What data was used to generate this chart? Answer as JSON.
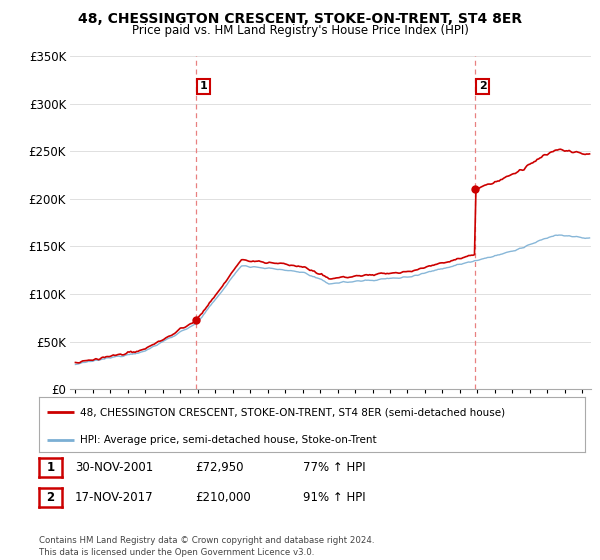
{
  "title": "48, CHESSINGTON CRESCENT, STOKE-ON-TRENT, ST4 8ER",
  "subtitle": "Price paid vs. HM Land Registry's House Price Index (HPI)",
  "ylim": [
    0,
    350000
  ],
  "yticks": [
    0,
    50000,
    100000,
    150000,
    200000,
    250000,
    300000,
    350000
  ],
  "ytick_labels": [
    "£0",
    "£50K",
    "£100K",
    "£150K",
    "£200K",
    "£250K",
    "£300K",
    "£350K"
  ],
  "sale1_date": 2001.92,
  "sale1_price": 72950,
  "sale1_label": "1",
  "sale2_date": 2017.88,
  "sale2_price": 210000,
  "sale2_label": "2",
  "legend_line1": "48, CHESSINGTON CRESCENT, STOKE-ON-TRENT, ST4 8ER (semi-detached house)",
  "legend_line2": "HPI: Average price, semi-detached house, Stoke-on-Trent",
  "table_row1": [
    "1",
    "30-NOV-2001",
    "£72,950",
    "77% ↑ HPI"
  ],
  "table_row2": [
    "2",
    "17-NOV-2017",
    "£210,000",
    "91% ↑ HPI"
  ],
  "footer": "Contains HM Land Registry data © Crown copyright and database right 2024.\nThis data is licensed under the Open Government Licence v3.0.",
  "hpi_color": "#7bafd4",
  "price_color": "#cc0000",
  "sale_marker_color": "#cc0000",
  "vline_color": "#e88080",
  "background_color": "#ffffff",
  "grid_color": "#e0e0e0",
  "xlim_left": 1994.7,
  "xlim_right": 2024.5
}
